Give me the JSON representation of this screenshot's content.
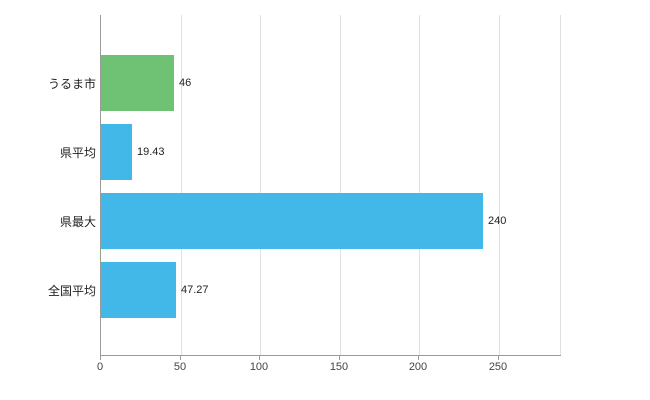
{
  "chart_data": {
    "type": "bar",
    "orientation": "horizontal",
    "title": "",
    "xlabel": "",
    "ylabel": "",
    "categories": [
      "うるま市",
      "県平均",
      "県最大",
      "全国平均"
    ],
    "values": [
      46,
      19.43,
      240,
      47.27
    ],
    "value_labels": [
      "46",
      "19.43",
      "240",
      "47.27"
    ],
    "bar_colors": [
      "#6fc173",
      "#41b8e8",
      "#41b8e8",
      "#41b8e8"
    ],
    "xticks": [
      0,
      50,
      100,
      150,
      200,
      250
    ],
    "xlim": [
      0,
      289
    ],
    "grid": true,
    "legend": false,
    "colors": {
      "axis": "#9b9b9b",
      "gridline": "#e0e0e0",
      "tick_text": "#444444",
      "label_text": "#222222",
      "background": "#ffffff"
    }
  }
}
